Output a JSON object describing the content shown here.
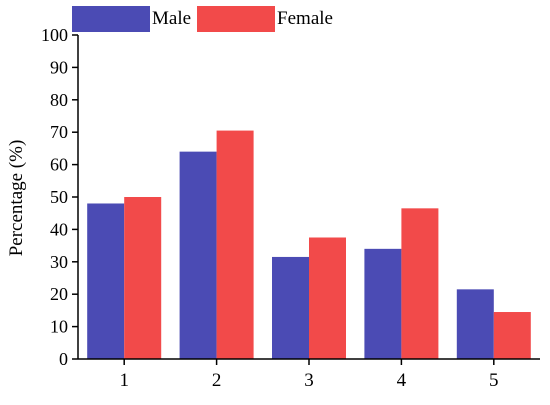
{
  "chart_data": {
    "type": "bar",
    "categories": [
      "1",
      "2",
      "3",
      "4",
      "5"
    ],
    "series": [
      {
        "name": "Male",
        "color": "#4b4bb4",
        "values": [
          48,
          64,
          31.5,
          34,
          21.5
        ]
      },
      {
        "name": "Female",
        "color": "#f24a4a",
        "values": [
          50,
          70.5,
          37.5,
          46.5,
          14.5
        ]
      }
    ],
    "ylabel": "Percentage (%)",
    "xlabel": "",
    "ylim": [
      0,
      100
    ],
    "yticks": [
      0,
      10,
      20,
      30,
      40,
      50,
      60,
      70,
      80,
      90,
      100
    ],
    "grid": false,
    "legend_placement": "top-left"
  }
}
